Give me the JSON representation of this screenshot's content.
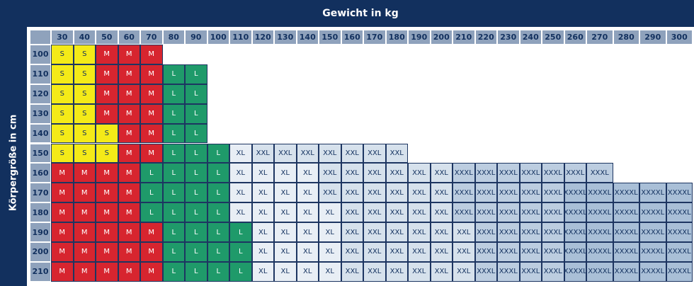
{
  "header": {
    "title": "Gewicht in kg",
    "row_axis": "Körpergröße in cm"
  },
  "table": {
    "columns": [
      30,
      40,
      50,
      60,
      70,
      80,
      90,
      100,
      110,
      120,
      130,
      140,
      150,
      160,
      170,
      180,
      190,
      200,
      210,
      220,
      230,
      240,
      250,
      260,
      270,
      280,
      290,
      300
    ],
    "colors": {
      "S": "#f4ea18",
      "M": "#d7252f",
      "L": "#1f9a6a",
      "XL": "#e8eef5",
      "XXL": "#d6e1ec",
      "XXXL": "#bccde0",
      "XXXXL": "#a9bfd7"
    },
    "rows": [
      {
        "label": 100,
        "cells": [
          "S",
          "S",
          "M",
          "M",
          "M"
        ]
      },
      {
        "label": 110,
        "cells": [
          "S",
          "S",
          "M",
          "M",
          "M",
          "L",
          "L"
        ]
      },
      {
        "label": 120,
        "cells": [
          "S",
          "S",
          "M",
          "M",
          "M",
          "L",
          "L"
        ]
      },
      {
        "label": 130,
        "cells": [
          "S",
          "S",
          "M",
          "M",
          "M",
          "L",
          "L"
        ]
      },
      {
        "label": 140,
        "cells": [
          "S",
          "S",
          "S",
          "M",
          "M",
          "L",
          "L"
        ]
      },
      {
        "label": 150,
        "cells": [
          "S",
          "S",
          "S",
          "M",
          "M",
          "L",
          "L",
          "L",
          "XL",
          "XXL",
          "XXL",
          "XXL",
          "XXL",
          "XXL",
          "XXL",
          "XXL"
        ]
      },
      {
        "label": 160,
        "cells": [
          "M",
          "M",
          "M",
          "M",
          "L",
          "L",
          "L",
          "L",
          "XL",
          "XL",
          "XL",
          "XL",
          "XXL",
          "XXL",
          "XXL",
          "XXL",
          "XXL",
          "XXL",
          "XXXL",
          "XXXL",
          "XXXL",
          "XXXL",
          "XXXL",
          "XXXL",
          "XXXL"
        ]
      },
      {
        "label": 170,
        "cells": [
          "M",
          "M",
          "M",
          "M",
          "L",
          "L",
          "L",
          "L",
          "XL",
          "XL",
          "XL",
          "XL",
          "XXL",
          "XXL",
          "XXL",
          "XXL",
          "XXL",
          "XXL",
          "XXXL",
          "XXXL",
          "XXXL",
          "XXXL",
          "XXXL",
          "XXXXL",
          "XXXXL",
          "XXXXL",
          "XXXXL",
          "XXXXL"
        ]
      },
      {
        "label": 180,
        "cells": [
          "M",
          "M",
          "M",
          "M",
          "L",
          "L",
          "L",
          "L",
          "XL",
          "XL",
          "XL",
          "XL",
          "XL",
          "XXL",
          "XXL",
          "XXL",
          "XXL",
          "XXL",
          "XXXL",
          "XXXL",
          "XXXL",
          "XXXL",
          "XXXL",
          "XXXXL",
          "XXXXL",
          "XXXXL",
          "XXXXL",
          "XXXXL"
        ]
      },
      {
        "label": 190,
        "cells": [
          "M",
          "M",
          "M",
          "M",
          "M",
          "L",
          "L",
          "L",
          "L",
          "XL",
          "XL",
          "XL",
          "XL",
          "XXL",
          "XXL",
          "XXL",
          "XXL",
          "XXL",
          "XXL",
          "XXXL",
          "XXXL",
          "XXXL",
          "XXXL",
          "XXXXL",
          "XXXXL",
          "XXXXL",
          "XXXXL",
          "XXXXL"
        ]
      },
      {
        "label": 200,
        "cells": [
          "M",
          "M",
          "M",
          "M",
          "M",
          "L",
          "L",
          "L",
          "L",
          "XL",
          "XL",
          "XL",
          "XL",
          "XXL",
          "XXL",
          "XXL",
          "XXL",
          "XXL",
          "XXL",
          "XXXL",
          "XXXL",
          "XXXL",
          "XXXL",
          "XXXXL",
          "XXXXL",
          "XXXXL",
          "XXXXL",
          "XXXXL"
        ]
      },
      {
        "label": 210,
        "cells": [
          "M",
          "M",
          "M",
          "M",
          "M",
          "L",
          "L",
          "L",
          "L",
          "XL",
          "XL",
          "XL",
          "XL",
          "XXL",
          "XXL",
          "XXL",
          "XXL",
          "XXL",
          "XXL",
          "XXXL",
          "XXXL",
          "XXXL",
          "XXXL",
          "XXXXL",
          "XXXXL",
          "XXXXL",
          "XXXXL",
          "XXXXL"
        ]
      }
    ]
  }
}
